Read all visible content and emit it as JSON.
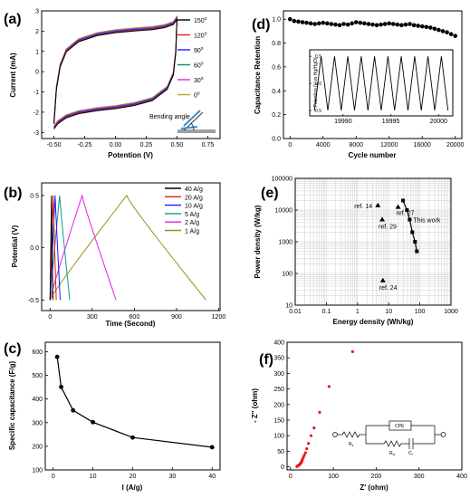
{
  "chart_data": [
    {
      "id": "a",
      "panel_label": "(a)",
      "type": "line",
      "xlabel": "Potention (V)",
      "ylabel": "Current  (mA)",
      "xlim": [
        -0.6,
        0.85
      ],
      "ylim": [
        -3.3,
        3.0
      ],
      "xticks": [
        -0.5,
        -0.25,
        0.0,
        0.25,
        0.5,
        0.75
      ],
      "xtick_labels": [
        "-0.50",
        "-0.25",
        "0.00",
        "0.25",
        "0.50",
        "0.75"
      ],
      "yticks": [
        -3,
        -2,
        -1,
        0,
        1,
        2,
        3
      ],
      "series": [
        {
          "name": "150",
          "unit": "o",
          "color": "#000000"
        },
        {
          "name": "120",
          "unit": "o",
          "color": "#e8191c"
        },
        {
          "name": "90",
          "unit": "o",
          "color": "#1a1aff"
        },
        {
          "name": "60",
          "unit": "o",
          "color": "#0f8a7a"
        },
        {
          "name": "30",
          "unit": "o",
          "color": "#e61ee6"
        },
        {
          "name": "0",
          "unit": "o",
          "color": "#b5a81c"
        }
      ],
      "cv_shape": {
        "upper": [
          [
            -0.5,
            -2.5
          ],
          [
            -0.48,
            -0.8
          ],
          [
            -0.45,
            0.3
          ],
          [
            -0.4,
            1.05
          ],
          [
            -0.3,
            1.55
          ],
          [
            -0.15,
            1.85
          ],
          [
            0.0,
            2.0
          ],
          [
            0.15,
            2.08
          ],
          [
            0.3,
            2.15
          ],
          [
            0.4,
            2.25
          ],
          [
            0.47,
            2.4
          ],
          [
            0.5,
            2.65
          ]
        ],
        "lower": [
          [
            0.5,
            2.65
          ],
          [
            0.49,
            1.0
          ],
          [
            0.47,
            -0.1
          ],
          [
            0.42,
            -0.8
          ],
          [
            0.3,
            -1.35
          ],
          [
            0.15,
            -1.6
          ],
          [
            0.0,
            -1.75
          ],
          [
            -0.15,
            -1.85
          ],
          [
            -0.3,
            -2.0
          ],
          [
            -0.4,
            -2.2
          ],
          [
            -0.47,
            -2.5
          ],
          [
            -0.5,
            -2.75
          ]
        ]
      },
      "annotation": "Bending angle"
    },
    {
      "id": "b",
      "panel_label": "(b)",
      "type": "line",
      "xlabel": "Time (Second)",
      "ylabel": "Potential (V)",
      "xlim": [
        -60,
        1210
      ],
      "ylim": [
        -0.6,
        0.62
      ],
      "xticks": [
        0,
        300,
        600,
        900,
        1200
      ],
      "yticks": [
        -0.5,
        0.0,
        0.5
      ],
      "ytick_labels": [
        "-0.5",
        "0.0",
        "0.5"
      ],
      "series": [
        {
          "name": "40 A/g",
          "color": "#000000",
          "peak_time": 10,
          "end_time": 20
        },
        {
          "name": "20 A/g",
          "color": "#e8191c",
          "peak_time": 22,
          "end_time": 44
        },
        {
          "name": "10 A/g",
          "color": "#1a1aff",
          "peak_time": 36,
          "end_time": 72
        },
        {
          "name": "5 A/g",
          "color": "#0f9c8c",
          "peak_time": 68,
          "end_time": 140
        },
        {
          "name": "2 A/g",
          "color": "#e61ee6",
          "peak_time": 228,
          "end_time": 470
        },
        {
          "name": "1 A/g",
          "color": "#9a8f1a",
          "peak_time": 545,
          "end_time": 1110
        }
      ]
    },
    {
      "id": "c",
      "panel_label": "(c)",
      "type": "line",
      "xlabel": "I (A/g)",
      "ylabel": "Specific capacitance (F/g)",
      "xlim": [
        -2,
        42
      ],
      "ylim": [
        100,
        640
      ],
      "xticks": [
        0,
        10,
        20,
        30,
        40
      ],
      "yticks": [
        100,
        200,
        300,
        400,
        500,
        600
      ],
      "x": [
        1,
        2,
        5,
        10,
        20,
        40
      ],
      "y": [
        578,
        451,
        352,
        302,
        237,
        196
      ]
    },
    {
      "id": "d",
      "panel_label": "(d)",
      "type": "scatter",
      "xlabel": "Cycle number",
      "ylabel": "Capacitance Retention",
      "xlim": [
        -800,
        20800
      ],
      "ylim": [
        0,
        1.07
      ],
      "xticks": [
        0,
        4000,
        8000,
        12000,
        16000,
        20000
      ],
      "yticks": [
        0.0,
        0.2,
        0.4,
        0.6,
        0.8,
        1.0
      ],
      "ytick_labels": [
        "0.0",
        "0.2",
        "0.4",
        "0.6",
        "0.8",
        "1.0"
      ],
      "x": [
        0,
        500,
        1000,
        1500,
        2000,
        2500,
        3000,
        3500,
        4000,
        4500,
        5000,
        5500,
        6000,
        6500,
        7000,
        7500,
        8000,
        8500,
        9000,
        9500,
        10000,
        10500,
        11000,
        11500,
        12000,
        12500,
        13000,
        13500,
        14000,
        14500,
        15000,
        15500,
        16000,
        16500,
        17000,
        17500,
        18000,
        18500,
        19000,
        19500,
        20000
      ],
      "y": [
        1.0,
        0.985,
        0.98,
        0.975,
        0.97,
        0.965,
        0.96,
        0.965,
        0.97,
        0.965,
        0.96,
        0.955,
        0.95,
        0.96,
        0.955,
        0.965,
        0.975,
        0.97,
        0.965,
        0.96,
        0.955,
        0.95,
        0.955,
        0.96,
        0.965,
        0.96,
        0.955,
        0.95,
        0.955,
        0.96,
        0.95,
        0.945,
        0.94,
        0.935,
        0.93,
        0.92,
        0.91,
        0.9,
        0.89,
        0.875,
        0.86
      ],
      "inset": {
        "type": "line",
        "ylabel": "Potention (V vs Hg/HgO)",
        "xlim": [
          19986.5,
          20001.5
        ],
        "ylim": [
          -0.6,
          0.62
        ],
        "xticks": [
          19990,
          19995,
          20000
        ],
        "yticks": [
          -0.5,
          0.0,
          0.5
        ],
        "ytick_labels": [
          "-0.5",
          "0.0",
          "0.5"
        ],
        "cycles": 10,
        "x_start": 19987,
        "x_end": 20001,
        "v_min": -0.5,
        "v_max": 0.5
      }
    },
    {
      "id": "e",
      "panel_label": "(e)",
      "type": "scatter",
      "xscale": "log",
      "yscale": "log",
      "xlabel": "Energy density (Wh/kg)",
      "ylabel": "Power density (W/kg)",
      "xlim": [
        0.01,
        1000
      ],
      "ylim": [
        10,
        100000
      ],
      "xticks": [
        0.01,
        0.1,
        1,
        10,
        100,
        1000
      ],
      "xtick_labels": [
        "0.01",
        "0.1",
        "1",
        "10",
        "100",
        "1000"
      ],
      "yticks": [
        10,
        100,
        1000,
        10000,
        100000
      ],
      "ytick_labels": [
        "10",
        "100",
        "1000",
        "10000",
        "100000"
      ],
      "grid": true,
      "this_work": {
        "label": "This work",
        "x": [
          28.9,
          38.5,
          47.2,
          57.5,
          70.0,
          80.3
        ],
        "y": [
          20000,
          10000,
          5000,
          2000,
          1000,
          500
        ]
      },
      "refs": [
        {
          "label": "ref. 14",
          "x": 4.5,
          "y": 14000
        },
        {
          "label": "ref. 27",
          "x": 20,
          "y": 12500
        },
        {
          "label": "ref. 29",
          "x": 6.2,
          "y": 5000
        },
        {
          "label": "ref. 24",
          "x": 6.5,
          "y": 60
        }
      ]
    },
    {
      "id": "f",
      "panel_label": "(f)",
      "type": "scatter",
      "xlabel": "Z' (ohm)",
      "ylabel": "- Z'' (ohm)",
      "xlim": [
        -8,
        400
      ],
      "ylim": [
        -10,
        400
      ],
      "xticks": [
        0,
        100,
        200,
        300,
        400
      ],
      "yticks": [
        0,
        50,
        100,
        150,
        200,
        250,
        300,
        350,
        400
      ],
      "color": "#e8191c",
      "x": [
        15,
        16,
        17,
        18,
        19,
        20,
        21,
        22,
        23,
        24,
        25,
        26,
        27,
        28,
        30,
        32,
        35,
        38,
        42,
        48,
        55,
        68,
        90,
        145
      ],
      "y": [
        1,
        2,
        3,
        4,
        5,
        6,
        7,
        8,
        10,
        12,
        14,
        17,
        20,
        24,
        30,
        37,
        45,
        58,
        75,
        100,
        125,
        175,
        258,
        370
      ],
      "circuit": {
        "rs": "R",
        "rs_sub": "s",
        "cpe": "CPE",
        "rct": "R",
        "rct_sub": "ct",
        "cf": "C",
        "cf_sub": "f"
      }
    }
  ]
}
